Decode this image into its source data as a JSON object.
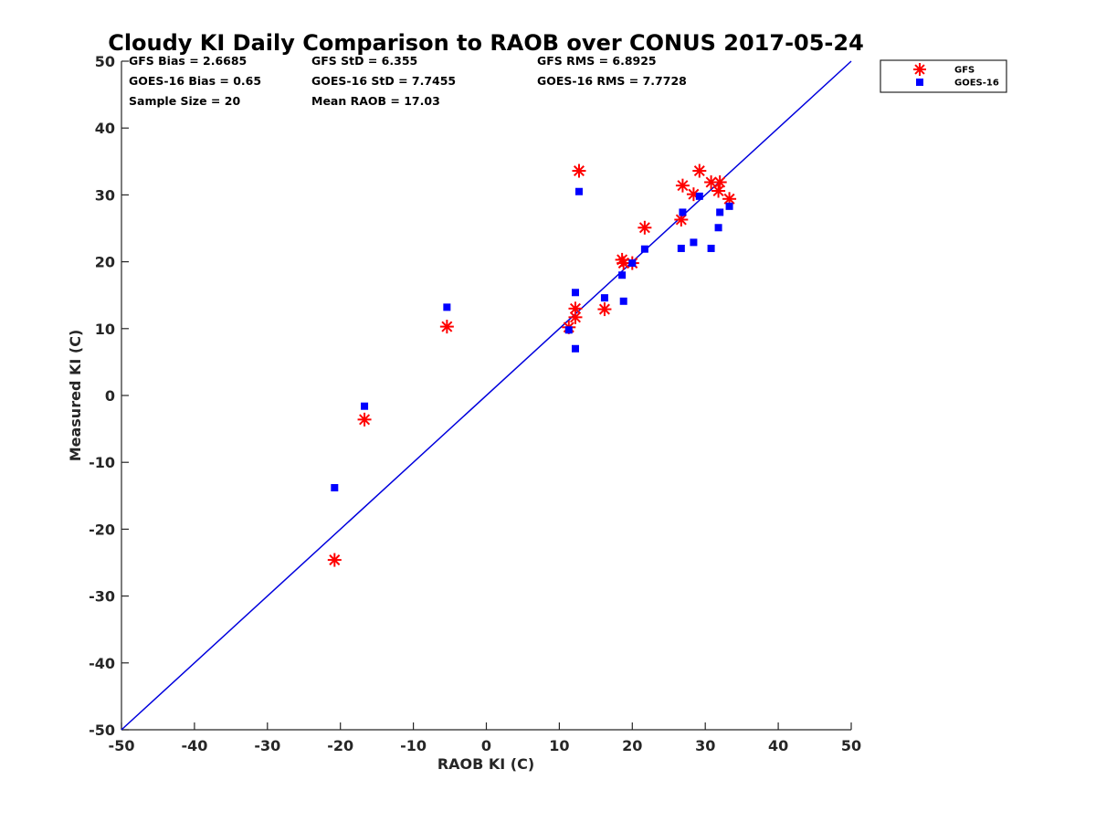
{
  "chart_data": {
    "type": "scatter",
    "title": "Cloudy KI Daily Comparison to RAOB over CONUS 2017-05-24",
    "xlabel": "RAOB KI (C)",
    "ylabel": "Measured KI (C)",
    "xlim": [
      -50,
      50
    ],
    "ylim": [
      -50,
      50
    ],
    "xticks": [
      "-50",
      "-40",
      "-30",
      "-20",
      "-10",
      "0",
      "10",
      "20",
      "30",
      "40",
      "50"
    ],
    "yticks": [
      "50",
      "40",
      "30",
      "20",
      "10",
      "0",
      "-10",
      "-20",
      "-30",
      "-40",
      "-50"
    ],
    "grid": false,
    "legend_position": "top-right",
    "reference_line": {
      "type": "1:1",
      "color": "#0000dd"
    },
    "stats": [
      [
        "GFS Bias = 2.6685",
        "GFS StD = 6.355",
        "GFS RMS = 6.8925"
      ],
      [
        "GOES-16 Bias = 0.65",
        "GOES-16 StD = 7.7455",
        "GOES-16 RMS = 7.7728"
      ],
      [
        "Sample Size = 20",
        "Mean RAOB = 17.03",
        ""
      ]
    ],
    "series": [
      {
        "name": "GFS",
        "marker": "asterisk",
        "color": "#ff0000",
        "points": [
          [
            -20.8,
            -24.6
          ],
          [
            -16.7,
            -3.6
          ],
          [
            -5.4,
            10.3
          ],
          [
            11.3,
            10.2
          ],
          [
            12.2,
            11.7
          ],
          [
            12.2,
            13.0
          ],
          [
            12.7,
            33.6
          ],
          [
            16.2,
            12.9
          ],
          [
            18.6,
            20.3
          ],
          [
            18.8,
            19.8
          ],
          [
            20.0,
            19.8
          ],
          [
            21.7,
            25.1
          ],
          [
            26.7,
            26.3
          ],
          [
            26.9,
            31.4
          ],
          [
            28.4,
            30.1
          ],
          [
            29.2,
            33.6
          ],
          [
            30.8,
            31.9
          ],
          [
            31.8,
            30.6
          ],
          [
            32.0,
            31.9
          ],
          [
            33.3,
            29.4
          ]
        ]
      },
      {
        "name": "GOES-16",
        "marker": "square",
        "color": "#0000ff",
        "points": [
          [
            -20.8,
            -13.8
          ],
          [
            -16.7,
            -1.6
          ],
          [
            -5.4,
            13.2
          ],
          [
            11.3,
            9.8
          ],
          [
            12.2,
            15.4
          ],
          [
            12.2,
            7.0
          ],
          [
            12.7,
            30.5
          ],
          [
            16.2,
            14.6
          ],
          [
            18.6,
            18.0
          ],
          [
            18.8,
            14.1
          ],
          [
            20.0,
            19.8
          ],
          [
            21.7,
            21.9
          ],
          [
            26.7,
            22.0
          ],
          [
            26.9,
            27.4
          ],
          [
            28.4,
            22.9
          ],
          [
            29.2,
            29.8
          ],
          [
            30.8,
            22.0
          ],
          [
            31.8,
            25.1
          ],
          [
            32.0,
            27.4
          ],
          [
            33.3,
            28.3
          ]
        ]
      }
    ]
  }
}
